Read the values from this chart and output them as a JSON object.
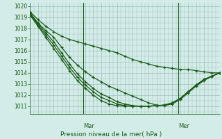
{
  "title": "Pression niveau de la mer( hPa )",
  "ylabel_values": [
    1011,
    1012,
    1013,
    1014,
    1015,
    1016,
    1017,
    1018,
    1019,
    1020
  ],
  "ylim": [
    1010.3,
    1020.3
  ],
  "xlim": [
    0,
    48
  ],
  "background_color": "#d4ece8",
  "grid_color": "#9bbfbc",
  "line_color": "#1a5c1a",
  "marker": "+",
  "vline_x": [
    13.5,
    37.5
  ],
  "vline_labels": [
    "Mar",
    "Mer"
  ],
  "num_x_points": 25,
  "series": [
    [
      1019.5,
      1018.8,
      1018.2,
      1017.7,
      1017.3,
      1017.0,
      1016.8,
      1016.6,
      1016.4,
      1016.2,
      1016.0,
      1015.8,
      1015.5,
      1015.2,
      1015.0,
      1014.8,
      1014.6,
      1014.5,
      1014.4,
      1014.3,
      1014.3,
      1014.2,
      1014.1,
      1014.0,
      1014.0
    ],
    [
      1019.4,
      1018.5,
      1017.8,
      1017.2,
      1016.3,
      1015.4,
      1014.7,
      1014.1,
      1013.6,
      1013.2,
      1012.8,
      1012.5,
      1012.2,
      1011.9,
      1011.6,
      1011.3,
      1011.1,
      1011.05,
      1011.2,
      1011.6,
      1012.2,
      1012.8,
      1013.3,
      1013.7,
      1014.0
    ],
    [
      1019.4,
      1018.4,
      1017.6,
      1016.8,
      1015.8,
      1014.8,
      1013.9,
      1013.2,
      1012.6,
      1012.1,
      1011.8,
      1011.4,
      1011.2,
      1011.05,
      1011.0,
      1011.0,
      1011.05,
      1011.1,
      1011.3,
      1011.7,
      1012.3,
      1012.9,
      1013.4,
      1013.7,
      1014.0
    ],
    [
      1019.3,
      1018.3,
      1017.4,
      1016.5,
      1015.5,
      1014.5,
      1013.6,
      1012.9,
      1012.3,
      1011.8,
      1011.5,
      1011.2,
      1011.05,
      1011.0,
      1011.0,
      1011.0,
      1011.05,
      1011.1,
      1011.3,
      1011.7,
      1012.3,
      1012.9,
      1013.4,
      1013.7,
      1014.0
    ],
    [
      1019.2,
      1018.2,
      1017.2,
      1016.2,
      1015.2,
      1014.2,
      1013.3,
      1012.6,
      1012.0,
      1011.5,
      1011.2,
      1011.05,
      1011.0,
      1011.0,
      1011.0,
      1011.0,
      1011.05,
      1011.1,
      1011.3,
      1011.7,
      1012.3,
      1012.9,
      1013.4,
      1013.7,
      1014.0
    ]
  ]
}
